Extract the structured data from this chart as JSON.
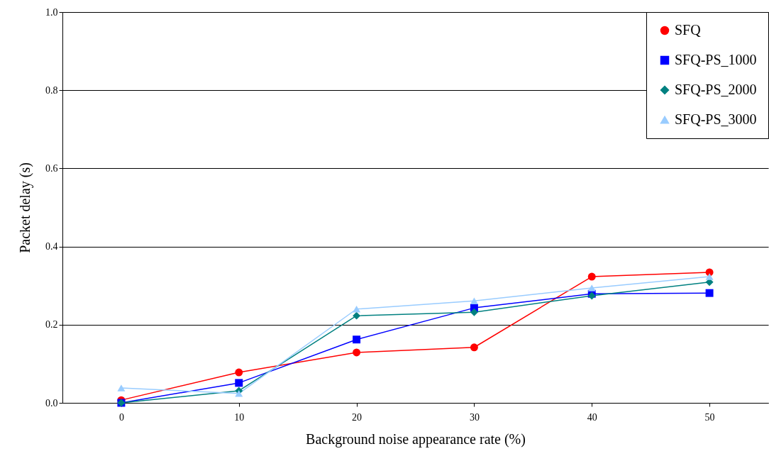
{
  "chart_data": {
    "type": "line",
    "xlabel": "Background noise appearance rate (%)",
    "ylabel": "Packet delay (s)",
    "categories": [
      "0",
      "10",
      "20",
      "30",
      "40",
      "50"
    ],
    "series": [
      {
        "name": "SFQ",
        "color": "#ff0000",
        "marker": "circle",
        "values": [
          0.007,
          0.078,
          0.129,
          0.142,
          0.323,
          0.334
        ]
      },
      {
        "name": "SFQ-PS_1000",
        "color": "#0000ff",
        "marker": "square",
        "values": [
          0.0,
          0.051,
          0.162,
          0.243,
          0.279,
          0.281
        ]
      },
      {
        "name": "SFQ-PS_2000",
        "color": "#008080",
        "marker": "diamond",
        "values": [
          0.0,
          0.031,
          0.223,
          0.232,
          0.274,
          0.309
        ]
      },
      {
        "name": "SFQ-PS_3000",
        "color": "#99ccff",
        "marker": "triangle",
        "values": [
          0.038,
          0.024,
          0.24,
          0.261,
          0.294,
          0.323
        ]
      }
    ],
    "ylim": [
      0,
      1
    ],
    "yticks": [
      {
        "value": 0,
        "label": "0.0"
      },
      {
        "value": 0.2,
        "label": "0.2"
      },
      {
        "value": 0.4,
        "label": "0.4"
      },
      {
        "value": 0.6,
        "label": "0.6"
      },
      {
        "value": 0.8,
        "label": "0.8"
      },
      {
        "value": 1,
        "label": "1.0"
      }
    ],
    "grid": "y",
    "legend": "top right",
    "line_style": "solid"
  }
}
